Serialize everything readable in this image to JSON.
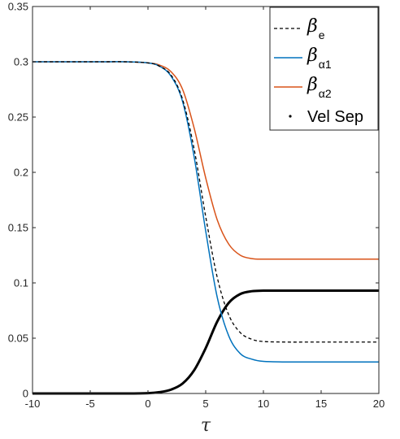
{
  "chart_data": {
    "type": "line",
    "xlabel": "τ",
    "ylabel": "",
    "xlim": [
      -10,
      20
    ],
    "ylim": [
      0,
      0.35
    ],
    "xticks": [
      -10,
      -5,
      0,
      5,
      10,
      15,
      20
    ],
    "yticks": [
      0,
      0.05,
      0.1,
      0.15,
      0.2,
      0.25,
      0.3,
      0.35
    ],
    "xtick_labels": [
      "-10",
      "-5",
      "0",
      "5",
      "10",
      "15",
      "20"
    ],
    "ytick_labels": [
      "0",
      "0.05",
      "0.1",
      "0.15",
      "0.2",
      "0.25",
      "0.3",
      "0.35"
    ],
    "grid": false,
    "legend_position": "top-right",
    "x": [
      -10,
      -8,
      -6,
      -4,
      -2,
      0,
      1,
      2,
      3,
      4,
      5,
      6,
      7,
      8,
      9,
      10,
      12,
      14,
      16,
      18,
      20
    ],
    "series": [
      {
        "name": "β_e",
        "legend_main": "β",
        "legend_sub": "e",
        "color": "#000000",
        "style": "dashed",
        "values": [
          0.3,
          0.3,
          0.3,
          0.3,
          0.3,
          0.299,
          0.296,
          0.288,
          0.266,
          0.221,
          0.16,
          0.105,
          0.071,
          0.055,
          0.049,
          0.047,
          0.0465,
          0.0465,
          0.0465,
          0.0465,
          0.0465
        ]
      },
      {
        "name": "β_α1",
        "legend_main": "β",
        "legend_sub": "α1",
        "color": "#0072BD",
        "style": "solid",
        "values": [
          0.3,
          0.3,
          0.3,
          0.3,
          0.3,
          0.299,
          0.296,
          0.287,
          0.264,
          0.214,
          0.147,
          0.087,
          0.052,
          0.036,
          0.031,
          0.029,
          0.0285,
          0.0285,
          0.0285,
          0.0285,
          0.0285
        ]
      },
      {
        "name": "β_α2",
        "legend_main": "β",
        "legend_sub": "α2",
        "color": "#D95319",
        "style": "solid",
        "values": [
          0.3,
          0.3,
          0.3,
          0.3,
          0.3,
          0.299,
          0.297,
          0.291,
          0.275,
          0.24,
          0.195,
          0.157,
          0.135,
          0.125,
          0.122,
          0.1215,
          0.1215,
          0.1215,
          0.1215,
          0.1215,
          0.1215
        ]
      },
      {
        "name": "Vel Sep",
        "legend_main": "Vel Sep",
        "legend_sub": "",
        "color": "#000000",
        "style": "thick",
        "values": [
          0,
          0,
          0,
          0,
          0,
          0.0003,
          0.0012,
          0.0035,
          0.009,
          0.021,
          0.041,
          0.065,
          0.082,
          0.09,
          0.0925,
          0.093,
          0.093,
          0.093,
          0.093,
          0.093,
          0.093
        ]
      }
    ]
  }
}
